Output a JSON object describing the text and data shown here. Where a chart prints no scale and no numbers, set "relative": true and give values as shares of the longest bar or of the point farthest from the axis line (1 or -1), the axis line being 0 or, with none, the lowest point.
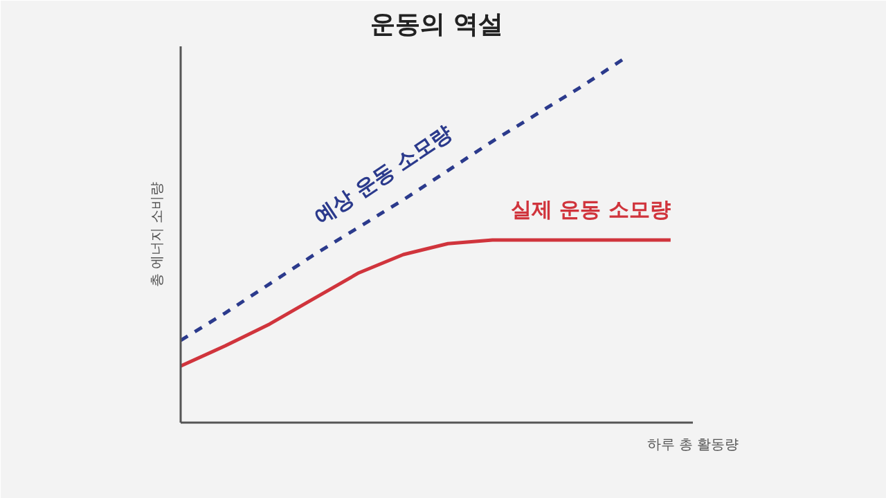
{
  "chart_data": {
    "type": "line",
    "title": "운동의 역설",
    "xlabel": "하루 총 활동량",
    "ylabel": "총 에너지 소비량",
    "relative": true,
    "grid": false,
    "legend": false,
    "categories": [
      null,
      null,
      null,
      null,
      null,
      null,
      null,
      null,
      null,
      null,
      null,
      null
    ],
    "series": [
      {
        "name": "예상 운동 소모량",
        "color": "#2b3a8c",
        "line_style": "dashed",
        "values": [
          0.225,
          0.3,
          0.38,
          0.46,
          0.535,
          0.61,
          0.69,
          0.77,
          0.845,
          0.92,
          1,
          null
        ]
      },
      {
        "name": "실제 운동 소모량",
        "color": "#d0343c",
        "line_style": "solid",
        "values": [
          0.155,
          0.21,
          0.27,
          0.34,
          0.41,
          0.46,
          0.49,
          0.5,
          0.5,
          0.5,
          0.5,
          0.5
        ]
      }
    ]
  }
}
